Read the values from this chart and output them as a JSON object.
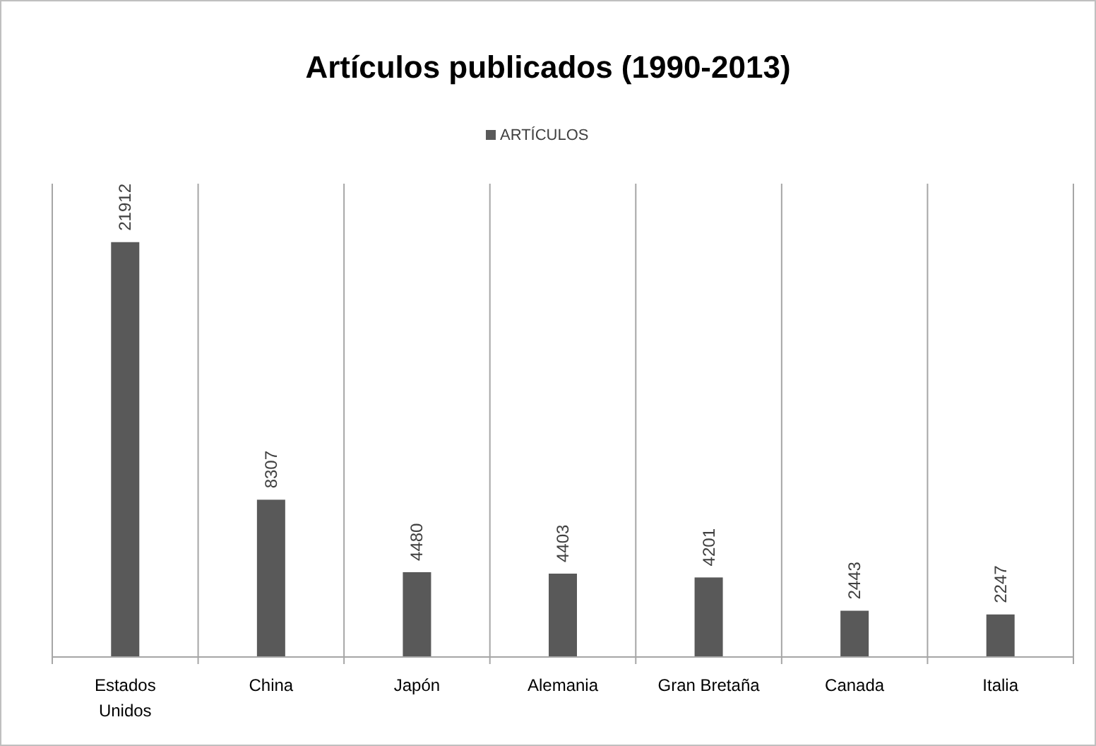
{
  "chart_data": {
    "type": "bar",
    "title": "Artículos publicados (1990-2013)",
    "categories": [
      "Estados Unidos",
      "China",
      "Japón",
      "Alemania",
      "Gran Bretaña",
      "Canada",
      "Italia"
    ],
    "series": [
      {
        "name": "ARTÍCULOS",
        "color": "#595959",
        "values": [
          21912,
          8307,
          4480,
          4403,
          4201,
          2443,
          2247
        ]
      }
    ],
    "ylim": [
      0,
      25000
    ],
    "data_labels": true,
    "grid": "x",
    "legend": "top",
    "tick_labels": "x"
  }
}
